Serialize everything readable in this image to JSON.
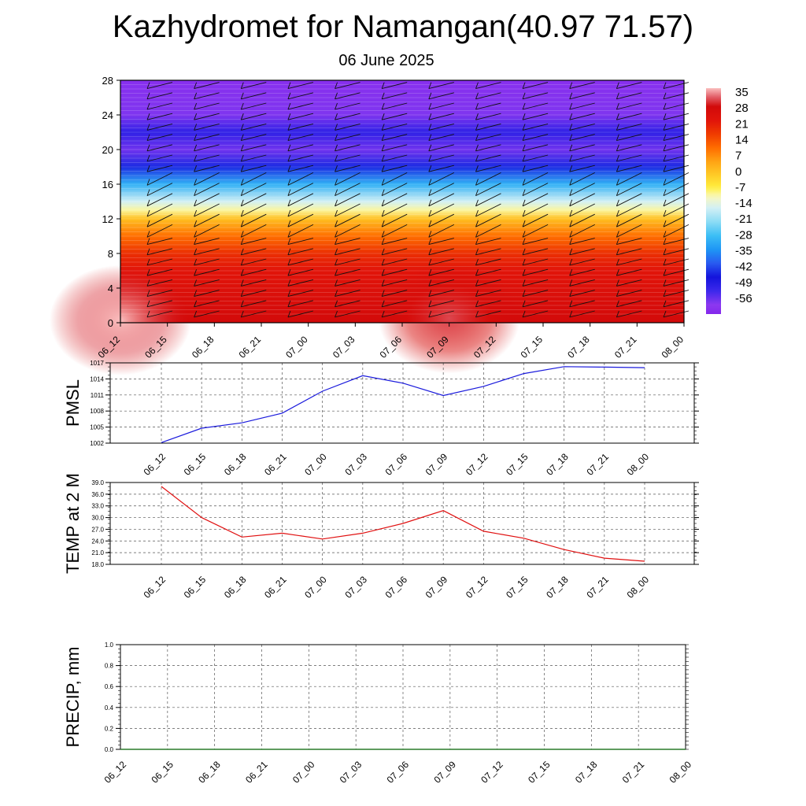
{
  "title": "Kazhydromet for Namangan(40.97 71.57)",
  "date": "06 June 2025",
  "colors": {
    "pmsl_line": "#1a1adc",
    "temp_line": "#e01010",
    "precip_line": "#2a7a2a"
  },
  "chart_data": [
    {
      "type": "heatmap",
      "name": "upper-air-temperature-and-wind",
      "x_ticks": [
        "06_12",
        "06_15",
        "06_18",
        "06_21",
        "07_00",
        "07_03",
        "07_06",
        "07_09",
        "07_12",
        "07_15",
        "07_18",
        "07_21",
        "08_00"
      ],
      "y_ticks": [
        "0",
        "4",
        "8",
        "12",
        "16",
        "20",
        "24",
        "28"
      ],
      "ylim": [
        0,
        28
      ],
      "colorbar_labels": [
        "35",
        "28",
        "21",
        "14",
        "7",
        "0",
        "-7",
        "-14",
        "-21",
        "-28",
        "-35",
        "-42",
        "-49",
        "-56"
      ],
      "colorbar_range": [
        -60,
        38
      ],
      "temperature_by_level": [
        {
          "y": 0,
          "t": 30
        },
        {
          "y": 2,
          "t": 28
        },
        {
          "y": 4,
          "t": 26
        },
        {
          "y": 6,
          "t": 24
        },
        {
          "y": 8,
          "t": 20
        },
        {
          "y": 10,
          "t": 12
        },
        {
          "y": 12,
          "t": 2
        },
        {
          "y": 13,
          "t": -8
        },
        {
          "y": 14,
          "t": -14
        },
        {
          "y": 16,
          "t": -28
        },
        {
          "y": 18,
          "t": -42
        },
        {
          "y": 20,
          "t": -54
        },
        {
          "y": 22,
          "t": -48
        },
        {
          "y": 24,
          "t": -55
        },
        {
          "y": 28,
          "t": -58
        }
      ],
      "hot_spots": [
        {
          "x": 0.0,
          "y": 0.3,
          "t": 38
        },
        {
          "x": 7.0,
          "y": 0.5,
          "t": 33
        }
      ],
      "wind_barbs": true
    },
    {
      "type": "line",
      "name": "pmsl",
      "ylabel": "PMSL",
      "categories": [
        "06_12",
        "06_15",
        "06_18",
        "06_21",
        "07_00",
        "07_03",
        "07_06",
        "07_09",
        "07_12",
        "07_15",
        "07_18",
        "07_21",
        "08_00"
      ],
      "y_ticks": [
        "1017",
        "1014",
        "1011",
        "1008",
        "1005",
        "1002"
      ],
      "ylim": [
        1002,
        1017
      ],
      "values": [
        1002.1,
        1004.8,
        1005.8,
        1007.6,
        1011.7,
        1014.6,
        1013.2,
        1010.9,
        1012.6,
        1015.0,
        1016.3,
        1016.2,
        1016.1
      ]
    },
    {
      "type": "line",
      "name": "temp-2m",
      "ylabel": "TEMP at 2 M",
      "categories": [
        "06_12",
        "06_15",
        "06_18",
        "06_21",
        "07_00",
        "07_03",
        "07_06",
        "07_09",
        "07_12",
        "07_15",
        "07_18",
        "07_21",
        "08_00"
      ],
      "y_ticks": [
        "39.0",
        "36.0",
        "33.0",
        "30.0",
        "27.0",
        "24.0",
        "21.0",
        "18.0"
      ],
      "ylim": [
        18,
        39
      ],
      "values": [
        38.0,
        30.0,
        25.0,
        26.0,
        24.5,
        26.0,
        28.5,
        31.8,
        26.5,
        24.7,
        21.8,
        19.6,
        18.8
      ]
    },
    {
      "type": "line",
      "name": "precip",
      "ylabel": "PRECIP, mm",
      "categories": [
        "06_12",
        "06_15",
        "06_18",
        "06_21",
        "07_00",
        "07_03",
        "07_06",
        "07_09",
        "07_12",
        "07_15",
        "07_18",
        "07_21",
        "08_00"
      ],
      "y_ticks": [
        "1.0",
        "0.8",
        "0.6",
        "0.4",
        "0.2",
        "0.0"
      ],
      "ylim": [
        0,
        1
      ],
      "values": [
        0,
        0,
        0,
        0,
        0,
        0,
        0,
        0,
        0,
        0,
        0,
        0,
        0
      ]
    }
  ]
}
